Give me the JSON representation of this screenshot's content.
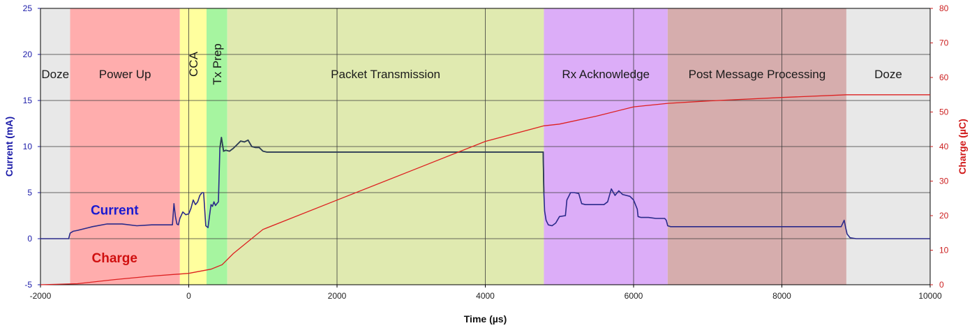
{
  "chart_data": {
    "type": "line",
    "xlabel": "Time (µs)",
    "ylabel_left": "Current (mA)",
    "ylabel_right": "Charge (µC)",
    "xlim": [
      -2000,
      10000
    ],
    "ylim_left": [
      -5,
      25
    ],
    "ylim_right": [
      0,
      80
    ],
    "x_ticks": [
      -2000,
      0,
      2000,
      4000,
      6000,
      8000,
      10000
    ],
    "y_left_ticks": [
      -5,
      0,
      5,
      10,
      15,
      20,
      25
    ],
    "y_right_ticks": [
      0,
      10,
      20,
      30,
      40,
      50,
      60,
      70,
      80
    ],
    "grid": true,
    "colors": {
      "current": "#2a2a8a",
      "current_tx": "#2e3e52",
      "charge": "#dd2020",
      "grid": "#3a3a3a"
    },
    "phases": [
      {
        "label": "Doze",
        "start": -2000,
        "end": -1600,
        "color": "#e8e8e8",
        "vertical": false
      },
      {
        "label": "Power Up",
        "start": -1600,
        "end": -120,
        "color": "#ffadad",
        "vertical": false
      },
      {
        "label": "CCA",
        "start": -120,
        "end": 240,
        "color": "#ffff9e",
        "vertical": true
      },
      {
        "label": "Tx Prep",
        "start": 240,
        "end": 520,
        "color": "#a6f5a0",
        "vertical": true
      },
      {
        "label": "Packet Transmission",
        "start": 520,
        "end": 4790,
        "color": "#e0eab0",
        "vertical": false
      },
      {
        "label": "Rx Acknowledge",
        "start": 4790,
        "end": 6460,
        "color": "#dcadf8",
        "vertical": false
      },
      {
        "label": "Post Message Processing",
        "start": 6460,
        "end": 8870,
        "color": "#d6adad",
        "vertical": false
      },
      {
        "label": "Doze",
        "start": 8870,
        "end": 10000,
        "color": "#e8e8e8",
        "vertical": false
      }
    ],
    "series": [
      {
        "name": "Current",
        "axis": "left",
        "x": [
          -2000,
          -1620,
          -1600,
          -1560,
          -1500,
          -1300,
          -1100,
          -900,
          -700,
          -500,
          -300,
          -220,
          -200,
          -180,
          -160,
          -140,
          -120,
          -80,
          -40,
          0,
          30,
          60,
          90,
          120,
          150,
          180,
          200,
          230,
          260,
          280,
          300,
          320,
          340,
          360,
          380,
          400,
          420,
          440,
          450,
          470,
          500,
          550,
          600,
          650,
          700,
          750,
          800,
          850,
          900,
          950,
          1000,
          1050,
          2000,
          3000,
          4000,
          4700,
          4780,
          4790,
          4800,
          4820,
          4850,
          4900,
          4950,
          5000,
          5080,
          5100,
          5150,
          5200,
          5260,
          5300,
          5350,
          5400,
          5500,
          5600,
          5650,
          5700,
          5750,
          5800,
          5850,
          5900,
          5950,
          6000,
          6050,
          6060,
          6100,
          6200,
          6300,
          6420,
          6440,
          6460,
          6500,
          7000,
          7500,
          8000,
          8500,
          8800,
          8840,
          8860,
          8880,
          8920,
          9000,
          9200,
          10000
        ],
        "values": [
          0,
          0,
          0.6,
          0.8,
          0.9,
          1.3,
          1.6,
          1.6,
          1.4,
          1.5,
          1.5,
          1.5,
          3.8,
          2.4,
          1.6,
          1.5,
          2.2,
          2.9,
          2.6,
          2.7,
          3.3,
          4.2,
          3.7,
          4.0,
          4.7,
          5.0,
          5.0,
          1.4,
          1.2,
          2.5,
          3.7,
          3.5,
          4.0,
          3.6,
          3.8,
          4.0,
          9.8,
          11.0,
          10.5,
          9.5,
          9.6,
          9.5,
          9.8,
          10.2,
          10.6,
          10.5,
          10.7,
          10.0,
          9.9,
          9.9,
          9.5,
          9.4,
          9.4,
          9.4,
          9.4,
          9.4,
          9.4,
          5.0,
          3.0,
          2.0,
          1.5,
          1.4,
          1.7,
          2.4,
          2.5,
          4.2,
          5.0,
          5.0,
          4.9,
          3.8,
          3.7,
          3.7,
          3.7,
          3.7,
          4.0,
          5.4,
          4.7,
          5.2,
          4.8,
          4.7,
          4.6,
          4.2,
          3.2,
          2.4,
          2.3,
          2.3,
          2.2,
          2.2,
          2.0,
          1.4,
          1.3,
          1.3,
          1.3,
          1.3,
          1.3,
          1.3,
          2.0,
          1.2,
          0.5,
          0.1,
          0.0,
          0.0,
          0.0
        ]
      },
      {
        "name": "Charge",
        "axis": "right",
        "x": [
          -2000,
          -1500,
          -1000,
          -500,
          0,
          300,
          450,
          600,
          1000,
          2000,
          3000,
          4000,
          4790,
          5000,
          5500,
          6000,
          6460,
          7000,
          8000,
          8870,
          10000
        ],
        "values": [
          0,
          0.3,
          1.5,
          2.5,
          3.3,
          4.5,
          5.8,
          9.0,
          16.0,
          24.5,
          33.0,
          41.5,
          46.0,
          46.5,
          48.8,
          51.5,
          52.5,
          53.2,
          54.2,
          55.0,
          55.0
        ]
      }
    ],
    "annotations": [
      {
        "text": "Current",
        "series": "Current"
      },
      {
        "text": "Charge",
        "series": "Charge"
      }
    ]
  }
}
